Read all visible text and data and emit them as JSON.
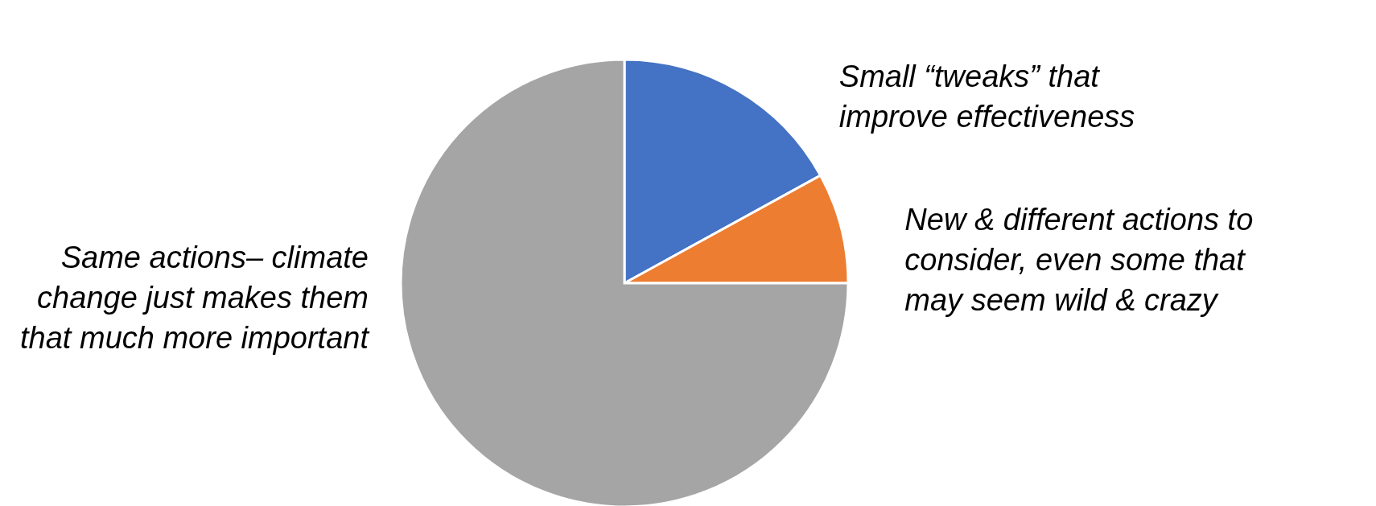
{
  "chart_data": {
    "type": "pie",
    "categories": [
      "Small “tweaks” that improve effectiveness",
      "New & different actions to consider, even some that may seem wild & crazy",
      "Same actions– climate change just makes them that much more important"
    ],
    "values": [
      17,
      8,
      75
    ],
    "colors": [
      "#4472c4",
      "#ed7d31",
      "#a5a5a5"
    ]
  }
}
